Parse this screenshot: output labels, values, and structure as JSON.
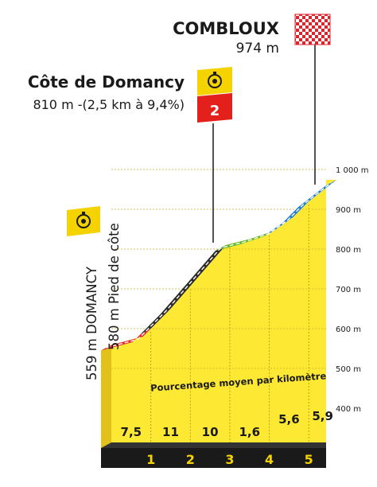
{
  "chart_data": {
    "type": "area",
    "title": "",
    "summit": {
      "name": "COMBLOUX",
      "altitude": "974 m"
    },
    "climb": {
      "name": "Côte de Domancy",
      "detail": "810 m -(2,5 km à 9,4%)",
      "category": "2"
    },
    "start": {
      "label_1": "559 m DOMANCY",
      "label_2": "580 m Pied de côte"
    },
    "subtitle": "Pourcentage moyen par kilomètre",
    "y_ticks": [
      {
        "value": 400,
        "label": "400 m"
      },
      {
        "value": 500,
        "label": "500 m"
      },
      {
        "value": 600,
        "label": "600 m"
      },
      {
        "value": 700,
        "label": "700 m"
      },
      {
        "value": 800,
        "label": "800 m"
      },
      {
        "value": 900,
        "label": "900 m"
      },
      {
        "value": 1000,
        "label": "1 000 m"
      }
    ],
    "ylim": [
      400,
      1000
    ],
    "km_markers": [
      "1",
      "2",
      "3",
      "4",
      "5"
    ],
    "gradients_per_km": [
      "7,5",
      "11",
      "10",
      "1,6",
      "5,6",
      "5,9"
    ],
    "profile": {
      "x": [
        0,
        0.8,
        1.5,
        2.2,
        2.9,
        3.5,
        4.1,
        4.6,
        5.0,
        5.7
      ],
      "y": [
        559,
        580,
        650,
        730,
        810,
        825,
        845,
        880,
        920,
        974
      ]
    },
    "segment_colors": {
      "red": "#e32b2b",
      "black": "#2b2b2b",
      "green": "#5fb82a",
      "blue": "#1f7fd6",
      "fill": "#fde934",
      "side": "#e2c21a",
      "base": "#1a1a1a",
      "marker": "#f5d300",
      "category_box": "#e3201b"
    }
  }
}
